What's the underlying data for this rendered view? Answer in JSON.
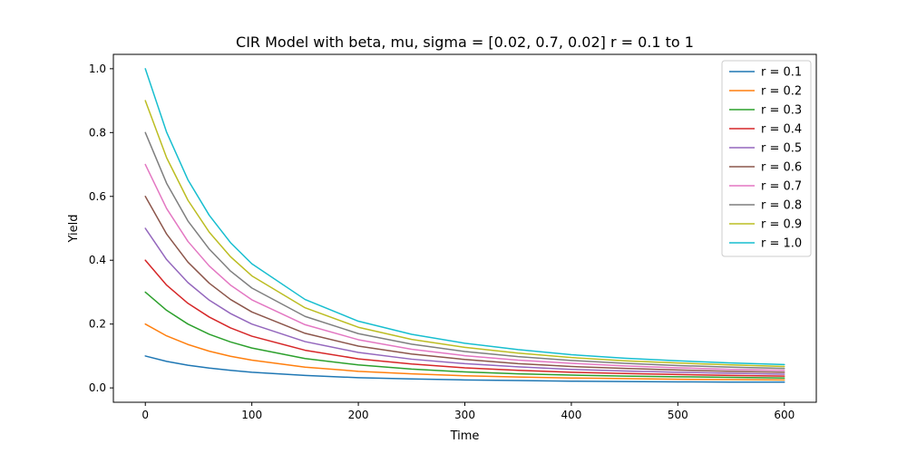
{
  "chart_data": {
    "type": "line",
    "title": "CIR Model with beta, mu, sigma = [0.02, 0.7, 0.02] r = 0.1 to 1",
    "xlabel": "Time",
    "ylabel": "Yield",
    "xlim": [
      -30,
      630
    ],
    "ylim": [
      -0.045,
      1.045
    ],
    "xticks": [
      0,
      100,
      200,
      300,
      400,
      500,
      600
    ],
    "xtick_labels": [
      "0",
      "100",
      "200",
      "300",
      "400",
      "500",
      "600"
    ],
    "yticks": [
      0.0,
      0.2,
      0.4,
      0.6,
      0.8,
      1.0
    ],
    "ytick_labels": [
      "0.0",
      "0.2",
      "0.4",
      "0.6",
      "0.8",
      "1.0"
    ],
    "grid": false,
    "legend_position": "top-right",
    "series": [
      {
        "name": "r = 0.1",
        "color": "#1f77b4",
        "x": [
          0,
          20,
          40,
          60,
          80,
          100,
          150,
          200,
          250,
          300,
          350,
          400,
          450,
          500,
          550,
          600
        ],
        "y": [
          0.1,
          0.083,
          0.071,
          0.062,
          0.055,
          0.049,
          0.039,
          0.032,
          0.028,
          0.025,
          0.023,
          0.021,
          0.02,
          0.019,
          0.018,
          0.018
        ]
      },
      {
        "name": "r = 0.2",
        "color": "#ff7f0e",
        "x": [
          0,
          20,
          40,
          60,
          80,
          100,
          150,
          200,
          250,
          300,
          350,
          400,
          450,
          500,
          550,
          600
        ],
        "y": [
          0.2,
          0.163,
          0.136,
          0.115,
          0.099,
          0.087,
          0.065,
          0.052,
          0.044,
          0.038,
          0.034,
          0.031,
          0.029,
          0.027,
          0.026,
          0.025
        ]
      },
      {
        "name": "r = 0.3",
        "color": "#2ca02c",
        "x": [
          0,
          20,
          40,
          60,
          80,
          100,
          150,
          200,
          250,
          300,
          350,
          400,
          450,
          500,
          550,
          600
        ],
        "y": [
          0.3,
          0.243,
          0.2,
          0.168,
          0.144,
          0.125,
          0.092,
          0.072,
          0.059,
          0.05,
          0.044,
          0.04,
          0.037,
          0.035,
          0.033,
          0.031
        ]
      },
      {
        "name": "r = 0.4",
        "color": "#d62728",
        "x": [
          0,
          20,
          40,
          60,
          80,
          100,
          150,
          200,
          250,
          300,
          350,
          400,
          450,
          500,
          550,
          600
        ],
        "y": [
          0.4,
          0.322,
          0.265,
          0.222,
          0.188,
          0.162,
          0.118,
          0.091,
          0.075,
          0.063,
          0.055,
          0.049,
          0.045,
          0.042,
          0.039,
          0.037
        ]
      },
      {
        "name": "r = 0.5",
        "color": "#9467bd",
        "x": [
          0,
          20,
          40,
          60,
          80,
          100,
          150,
          200,
          250,
          300,
          350,
          400,
          450,
          500,
          550,
          600
        ],
        "y": [
          0.5,
          0.402,
          0.33,
          0.275,
          0.233,
          0.2,
          0.145,
          0.111,
          0.09,
          0.076,
          0.066,
          0.058,
          0.053,
          0.049,
          0.046,
          0.043
        ]
      },
      {
        "name": "r = 0.6",
        "color": "#8c564b",
        "x": [
          0,
          20,
          40,
          60,
          80,
          100,
          150,
          200,
          250,
          300,
          350,
          400,
          450,
          500,
          550,
          600
        ],
        "y": [
          0.6,
          0.482,
          0.394,
          0.328,
          0.277,
          0.238,
          0.171,
          0.131,
          0.106,
          0.089,
          0.076,
          0.067,
          0.061,
          0.056,
          0.052,
          0.049
        ]
      },
      {
        "name": "r = 0.7",
        "color": "#e377c2",
        "x": [
          0,
          20,
          40,
          60,
          80,
          100,
          150,
          200,
          250,
          300,
          350,
          400,
          450,
          500,
          550,
          600
        ],
        "y": [
          0.7,
          0.562,
          0.459,
          0.382,
          0.322,
          0.276,
          0.198,
          0.151,
          0.121,
          0.101,
          0.087,
          0.077,
          0.069,
          0.063,
          0.058,
          0.055
        ]
      },
      {
        "name": "r = 0.8",
        "color": "#7f7f7f",
        "x": [
          0,
          20,
          40,
          60,
          80,
          100,
          150,
          200,
          250,
          300,
          350,
          400,
          450,
          500,
          550,
          600
        ],
        "y": [
          0.8,
          0.641,
          0.523,
          0.435,
          0.366,
          0.313,
          0.224,
          0.17,
          0.137,
          0.114,
          0.098,
          0.086,
          0.077,
          0.07,
          0.065,
          0.061
        ]
      },
      {
        "name": "r = 0.9",
        "color": "#bcbd22",
        "x": [
          0,
          20,
          40,
          60,
          80,
          100,
          150,
          200,
          250,
          300,
          350,
          400,
          450,
          500,
          550,
          600
        ],
        "y": [
          0.9,
          0.721,
          0.588,
          0.488,
          0.411,
          0.351,
          0.251,
          0.19,
          0.152,
          0.127,
          0.109,
          0.095,
          0.085,
          0.078,
          0.072,
          0.067
        ]
      },
      {
        "name": "r = 1.0",
        "color": "#17becf",
        "x": [
          0,
          20,
          40,
          60,
          80,
          100,
          150,
          200,
          250,
          300,
          350,
          400,
          450,
          500,
          550,
          600
        ],
        "y": [
          1.0,
          0.801,
          0.652,
          0.541,
          0.455,
          0.389,
          0.277,
          0.209,
          0.168,
          0.14,
          0.12,
          0.104,
          0.093,
          0.085,
          0.078,
          0.073
        ]
      }
    ]
  }
}
